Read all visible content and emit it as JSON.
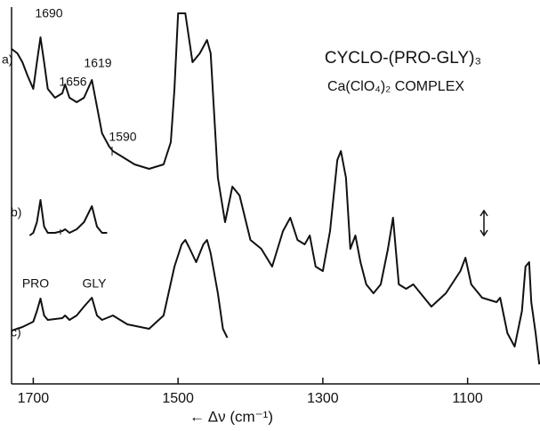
{
  "chart_data": {
    "type": "line",
    "title": "CYCLO-(PRO-GLY)₃",
    "subtitle": "Ca(ClO₄)₂ COMPLEX",
    "x_label": "← Δν (cm⁻¹)",
    "xlim": [
      1730,
      1000
    ],
    "xticks": [
      1700,
      1500,
      1300,
      1100
    ],
    "ylim": [
      0,
      420
    ],
    "annotations": [
      "1690",
      "1656",
      "1619",
      "1590",
      "a)",
      "b)",
      "c)",
      "PRO",
      "GLY"
    ],
    "series": [
      {
        "name": "a)",
        "color": "#111111",
        "x": [
          1730,
          1722,
          1715,
          1708,
          1700,
          1695,
          1690,
          1685,
          1680,
          1670,
          1660,
          1656,
          1650,
          1640,
          1630,
          1619,
          1612,
          1605,
          1595,
          1590,
          1580,
          1560,
          1540,
          1520,
          1510,
          1505,
          1500,
          1490,
          1480,
          1470,
          1460,
          1455,
          1445,
          1435,
          1425,
          1415,
          1400,
          1385,
          1370,
          1355,
          1345,
          1335,
          1325,
          1318,
          1310,
          1300,
          1290,
          1280,
          1275,
          1268,
          1262,
          1255,
          1248,
          1240,
          1230,
          1220,
          1210,
          1203,
          1195,
          1185,
          1175,
          1165,
          1150,
          1130,
          1110,
          1103,
          1095,
          1080,
          1060,
          1055,
          1045,
          1035,
          1025,
          1020,
          1015,
          1012,
          1006,
          1001
        ],
        "values": [
          380,
          375,
          365,
          350,
          335,
          365,
          393,
          365,
          335,
          325,
          330,
          340,
          325,
          320,
          325,
          345,
          315,
          285,
          270,
          265,
          260,
          250,
          245,
          250,
          275,
          335,
          420,
          420,
          365,
          375,
          390,
          375,
          235,
          185,
          225,
          215,
          165,
          155,
          135,
          175,
          190,
          165,
          160,
          170,
          135,
          130,
          175,
          255,
          265,
          235,
          155,
          170,
          140,
          115,
          105,
          115,
          155,
          190,
          115,
          110,
          115,
          105,
          90,
          105,
          130,
          145,
          115,
          100,
          95,
          100,
          60,
          45,
          85,
          135,
          140,
          95,
          60,
          25
        ]
      },
      {
        "name": "b)",
        "color": "#111111",
        "x": [
          1705,
          1700,
          1695,
          1690,
          1685,
          1680,
          1670,
          1660,
          1656,
          1650,
          1640,
          1630,
          1619,
          1612,
          1605,
          1598
        ],
        "values": [
          170,
          173,
          185,
          210,
          180,
          173,
          173,
          175,
          177,
          173,
          177,
          185,
          203,
          180,
          173,
          173
        ]
      },
      {
        "name": "c)",
        "color": "#111111",
        "x": [
          1730,
          1715,
          1700,
          1695,
          1690,
          1685,
          1680,
          1660,
          1656,
          1650,
          1640,
          1630,
          1619,
          1612,
          1605,
          1590,
          1570,
          1540,
          1520,
          1505,
          1495,
          1490,
          1485,
          1475,
          1465,
          1460,
          1455,
          1445,
          1438,
          1432
        ],
        "values": [
          63,
          67,
          73,
          85,
          99,
          80,
          75,
          77,
          80,
          75,
          80,
          90,
          100,
          80,
          75,
          80,
          70,
          65,
          80,
          135,
          160,
          165,
          157,
          140,
          160,
          165,
          150,
          105,
          65,
          55
        ]
      }
    ]
  }
}
